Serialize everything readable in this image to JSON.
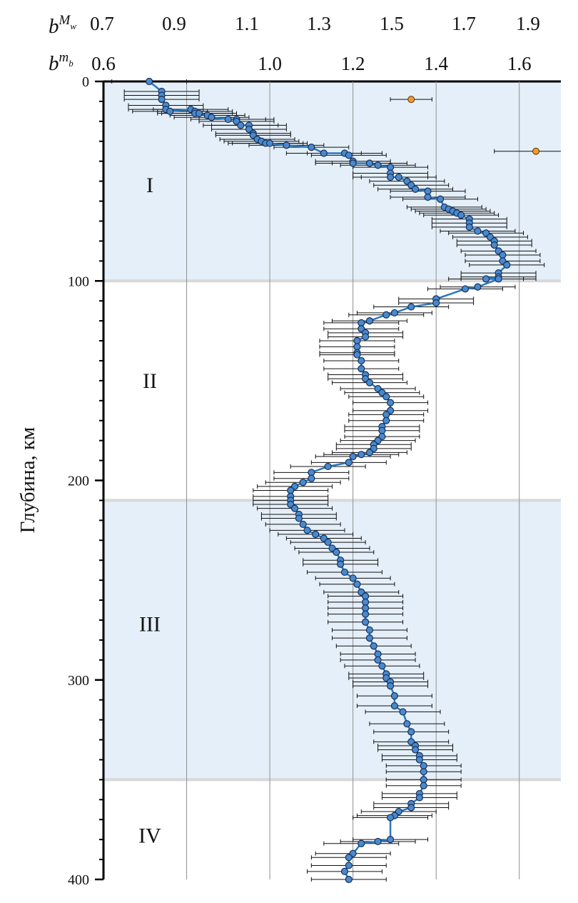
{
  "chart_data": {
    "type": "scatter",
    "ylabel": "Глубина, км",
    "y_range": [
      0,
      400
    ],
    "y_ticks": [
      "0",
      "100",
      "200",
      "300",
      "400"
    ],
    "y_inverted": true,
    "x_axis_mb": {
      "symbol_base": "b",
      "symbol_sup": "m",
      "symbol_sub": "b",
      "range": [
        0.6,
        1.7
      ],
      "ticks": [
        "0.6",
        "1.0",
        "1.2",
        "1.4",
        "1.6"
      ]
    },
    "x_axis_mw": {
      "symbol_base": "b",
      "symbol_sup": "M",
      "symbol_sub": "w",
      "ticks": [
        "0.7",
        "0.9",
        "1.1",
        "1.3",
        "1.5",
        "1.7",
        "1.9"
      ]
    },
    "gridlines_x": [
      0.8,
      1.0,
      1.2,
      1.4,
      1.6
    ],
    "zones": [
      {
        "label": "I",
        "from": 0,
        "to": 100,
        "shaded": true,
        "label_depth": 52
      },
      {
        "label": "II",
        "from": 100,
        "to": 210,
        "shaded": false,
        "label_depth": 150
      },
      {
        "label": "III",
        "from": 210,
        "to": 350,
        "shaded": true,
        "label_depth": 272
      },
      {
        "label": "IV",
        "from": 350,
        "to": 400,
        "shaded": false,
        "label_depth": 378
      }
    ],
    "colors": {
      "zone_fill": "#e4eff9",
      "zone_border": "#d8d8d8",
      "series_line": "#2e78bd",
      "series_marker": "#4a89cc",
      "marker_edge": "#15305a",
      "errorbar": "#111111",
      "outlier_marker": "#f09a2c",
      "grid": "#8f8f8f"
    },
    "series": [
      {
        "points": [
          [
            0.71,
            0
          ],
          [
            0.74,
            5
          ],
          [
            0.74,
            7
          ],
          [
            0.74,
            9
          ],
          [
            0.75,
            12
          ],
          [
            0.75,
            14
          ],
          [
            0.76,
            15
          ],
          [
            0.81,
            14
          ],
          [
            0.82,
            15
          ],
          [
            0.82,
            16
          ],
          [
            0.83,
            16
          ],
          [
            0.85,
            17
          ],
          [
            0.86,
            18
          ],
          [
            0.9,
            19
          ],
          [
            0.92,
            19
          ],
          [
            0.92,
            20
          ],
          [
            0.93,
            22
          ],
          [
            0.95,
            22
          ],
          [
            0.95,
            24
          ],
          [
            0.96,
            26
          ],
          [
            0.96,
            27
          ],
          [
            0.97,
            29
          ],
          [
            0.98,
            30
          ],
          [
            0.99,
            31
          ],
          [
            1.0,
            31
          ],
          [
            1.04,
            32
          ],
          [
            1.1,
            33
          ],
          [
            1.13,
            36
          ],
          [
            1.18,
            36
          ],
          [
            1.19,
            37
          ],
          [
            1.2,
            40
          ],
          [
            1.2,
            41
          ],
          [
            1.24,
            41
          ],
          [
            1.26,
            42
          ],
          [
            1.29,
            43
          ],
          [
            1.29,
            46
          ],
          [
            1.29,
            48
          ],
          [
            1.31,
            48
          ],
          [
            1.33,
            50
          ],
          [
            1.34,
            52
          ],
          [
            1.35,
            54
          ],
          [
            1.38,
            55
          ],
          [
            1.38,
            58
          ],
          [
            1.41,
            59
          ],
          [
            1.42,
            63
          ],
          [
            1.43,
            64
          ],
          [
            1.44,
            65
          ],
          [
            1.45,
            66
          ],
          [
            1.46,
            67
          ],
          [
            1.48,
            69
          ],
          [
            1.48,
            71
          ],
          [
            1.48,
            73
          ],
          [
            1.5,
            75
          ],
          [
            1.52,
            76
          ],
          [
            1.53,
            78
          ],
          [
            1.54,
            80
          ],
          [
            1.54,
            82
          ],
          [
            1.55,
            85
          ],
          [
            1.56,
            87
          ],
          [
            1.56,
            90
          ],
          [
            1.57,
            92
          ],
          [
            1.55,
            96
          ],
          [
            1.55,
            98
          ],
          [
            1.52,
            99
          ],
          [
            1.55,
            99
          ],
          [
            1.5,
            103
          ],
          [
            1.47,
            104
          ],
          [
            1.4,
            109
          ],
          [
            1.4,
            111
          ],
          [
            1.34,
            113
          ],
          [
            1.3,
            116
          ],
          [
            1.28,
            117
          ],
          [
            1.24,
            120
          ],
          [
            1.22,
            121
          ],
          [
            1.22,
            124
          ],
          [
            1.23,
            126
          ],
          [
            1.23,
            128
          ],
          [
            1.21,
            130
          ],
          [
            1.21,
            133
          ],
          [
            1.21,
            136
          ],
          [
            1.21,
            137
          ],
          [
            1.22,
            140
          ],
          [
            1.22,
            144
          ],
          [
            1.23,
            147
          ],
          [
            1.23,
            149
          ],
          [
            1.24,
            151
          ],
          [
            1.26,
            154
          ],
          [
            1.27,
            156
          ],
          [
            1.28,
            158
          ],
          [
            1.29,
            161
          ],
          [
            1.29,
            165
          ],
          [
            1.28,
            167
          ],
          [
            1.28,
            170
          ],
          [
            1.27,
            173
          ],
          [
            1.27,
            175
          ],
          [
            1.27,
            178
          ],
          [
            1.26,
            180
          ],
          [
            1.25,
            182
          ],
          [
            1.25,
            184
          ],
          [
            1.24,
            186
          ],
          [
            1.22,
            187
          ],
          [
            1.2,
            188
          ],
          [
            1.19,
            191
          ],
          [
            1.14,
            193
          ],
          [
            1.1,
            196
          ],
          [
            1.1,
            199
          ],
          [
            1.08,
            201
          ],
          [
            1.06,
            203
          ],
          [
            1.05,
            205
          ],
          [
            1.05,
            208
          ],
          [
            1.05,
            210
          ],
          [
            1.05,
            212
          ],
          [
            1.06,
            214
          ],
          [
            1.07,
            217
          ],
          [
            1.07,
            219
          ],
          [
            1.08,
            222
          ],
          [
            1.09,
            225
          ],
          [
            1.11,
            227
          ],
          [
            1.13,
            229
          ],
          [
            1.14,
            231
          ],
          [
            1.15,
            234
          ],
          [
            1.16,
            236
          ],
          [
            1.17,
            240
          ],
          [
            1.17,
            242
          ],
          [
            1.18,
            246
          ],
          [
            1.2,
            249
          ],
          [
            1.21,
            252
          ],
          [
            1.22,
            256
          ],
          [
            1.23,
            258
          ],
          [
            1.23,
            261
          ],
          [
            1.23,
            264
          ],
          [
            1.23,
            267
          ],
          [
            1.23,
            271
          ],
          [
            1.24,
            275
          ],
          [
            1.24,
            279
          ],
          [
            1.25,
            283
          ],
          [
            1.26,
            287
          ],
          [
            1.26,
            290
          ],
          [
            1.27,
            293
          ],
          [
            1.28,
            297
          ],
          [
            1.28,
            299
          ],
          [
            1.29,
            301
          ],
          [
            1.29,
            303
          ],
          [
            1.3,
            308
          ],
          [
            1.3,
            313
          ],
          [
            1.32,
            316
          ],
          [
            1.33,
            322
          ],
          [
            1.34,
            326
          ],
          [
            1.34,
            331
          ],
          [
            1.35,
            333
          ],
          [
            1.35,
            335
          ],
          [
            1.36,
            338
          ],
          [
            1.36,
            340
          ],
          [
            1.37,
            343
          ],
          [
            1.37,
            346
          ],
          [
            1.37,
            350
          ],
          [
            1.37,
            353
          ],
          [
            1.36,
            357
          ],
          [
            1.36,
            359
          ],
          [
            1.34,
            362
          ],
          [
            1.34,
            364
          ],
          [
            1.31,
            366
          ],
          [
            1.3,
            368
          ],
          [
            1.29,
            369
          ],
          [
            1.29,
            380
          ],
          [
            1.26,
            381
          ],
          [
            1.22,
            382
          ],
          [
            1.2,
            387
          ],
          [
            1.19,
            389
          ],
          [
            1.19,
            393
          ],
          [
            1.18,
            396
          ],
          [
            1.19,
            400
          ]
        ],
        "xerr": 0.09
      }
    ],
    "outliers": [
      {
        "x": 1.34,
        "y": 9,
        "xerr": 0.05
      },
      {
        "x": 1.64,
        "y": 35,
        "xerr": 0.1
      }
    ]
  }
}
